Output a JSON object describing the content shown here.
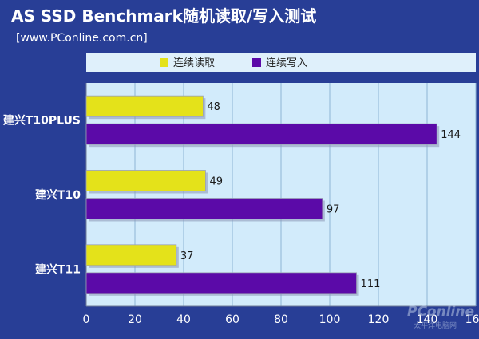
{
  "header": {
    "title": "AS SSD Benchmark随机读取/写入测试",
    "subtitle": "[www.PConline.com.cn]"
  },
  "watermark": {
    "brand": "PConline",
    "sub": "太平洋电脑网"
  },
  "colors": {
    "background": "#283e96",
    "plot_bg": "#d2ebfb",
    "legend_bg": "#dff0fb",
    "read": "#e4e21a",
    "write": "#5b0aa8",
    "grid": "#8fb6d6"
  },
  "chart_data": {
    "type": "bar",
    "orientation": "horizontal",
    "title": "AS SSD Benchmark随机读取/写入测试",
    "subtitle": "[www.PConline.com.cn]",
    "categories": [
      "建兴T10PLUS",
      "建兴T10",
      "建兴T11"
    ],
    "series": [
      {
        "name": "连续读取",
        "values": [
          48,
          49,
          37
        ]
      },
      {
        "name": "连续写入",
        "values": [
          144,
          97,
          111
        ]
      }
    ],
    "xlim": [
      0,
      160
    ],
    "xticks": [
      0,
      20,
      40,
      60,
      80,
      100,
      120,
      140,
      160
    ],
    "grid": true,
    "legend": "top-center"
  }
}
